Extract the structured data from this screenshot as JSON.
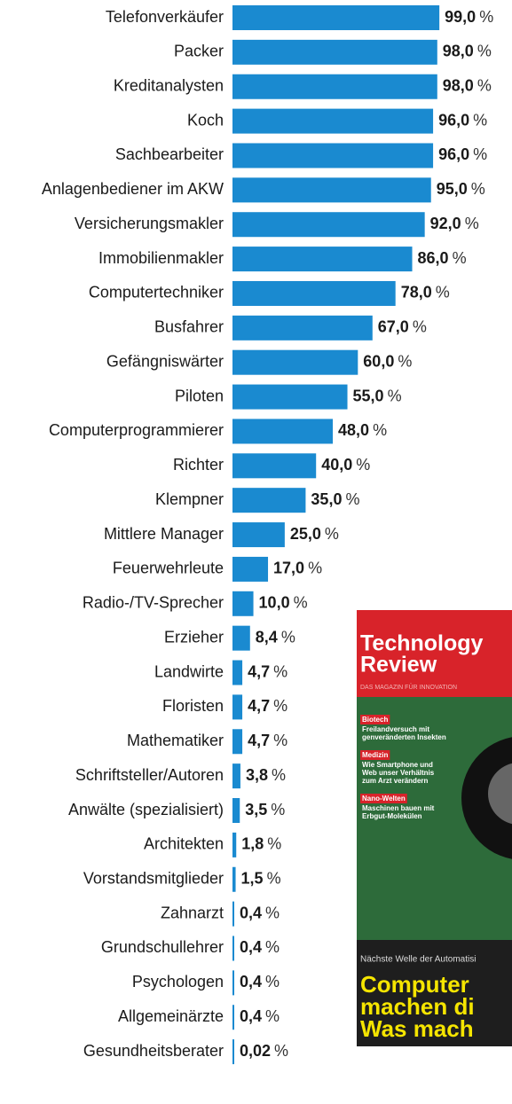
{
  "chart_data": {
    "type": "bar",
    "orientation": "horizontal",
    "color": "#1a8ad0",
    "categories": [
      "Telefonverkäufer",
      "Packer",
      "Kreditanalysten",
      "Koch",
      "Sachbearbeiter",
      "Anlagenbediener im AKW",
      "Versicherungsmakler",
      "Immobilienmakler",
      "Computertechniker",
      "Busfahrer",
      "Gefängniswärter",
      "Piloten",
      "Computerprogrammierer",
      "Richter",
      "Klempner",
      "Mittlere Manager",
      "Feuerwehrleute",
      "Radio-/TV-Sprecher",
      "Erzieher",
      "Landwirte",
      "Floristen",
      "Mathematiker",
      "Schriftsteller/Autoren",
      "Anwälte (spezialisiert)",
      "Architekten",
      "Vorstandsmitglieder",
      "Zahnarzt",
      "Grundschullehrer",
      "Psychologen",
      "Allgemeinärzte",
      "Gesundheitsberater"
    ],
    "values": [
      99,
      98,
      98,
      96,
      96,
      95,
      92,
      86,
      78,
      67,
      60,
      55,
      48,
      40,
      35,
      25,
      17,
      10,
      8.4,
      4.7,
      4.7,
      4.7,
      3.8,
      3.5,
      1.8,
      1.5,
      0.4,
      0.4,
      0.4,
      0.4,
      0.02
    ],
    "value_labels": [
      "99,0",
      "98,0",
      "98,0",
      "96,0",
      "96,0",
      "95,0",
      "92,0",
      "86,0",
      "78,0",
      "67,0",
      "60,0",
      "55,0",
      "48,0",
      "40,0",
      "35,0",
      "25,0",
      "17,0",
      "10,0",
      "8,4",
      "4,7",
      "4,7",
      "4,7",
      "3,8",
      "3,5",
      "1,8",
      "1,5",
      "0,4",
      "0,4",
      "0,4",
      "0,4",
      "0,02"
    ],
    "unit": "%",
    "xlim": [
      0,
      100
    ]
  },
  "cover": {
    "title_lines": [
      "Technology",
      "Review"
    ],
    "tagline": "DAS MAGAZIN FÜR INNOVATION",
    "teasers": [
      {
        "kicker": "Biotech",
        "lines": [
          "Freilandversuch mit",
          "genveränderten Insekten"
        ]
      },
      {
        "kicker": "Medizin",
        "lines": [
          "Wie Smartphone und",
          "Web unser Verhältnis",
          "zum Arzt verändern"
        ]
      },
      {
        "kicker": "Nano-Welten",
        "lines": [
          "Maschinen bauen mit",
          "Erbgut-Molekülen"
        ]
      }
    ],
    "strap": "Nächste Welle der Automatisi",
    "headline": [
      "Computer",
      "machen di",
      "Was mach"
    ]
  }
}
